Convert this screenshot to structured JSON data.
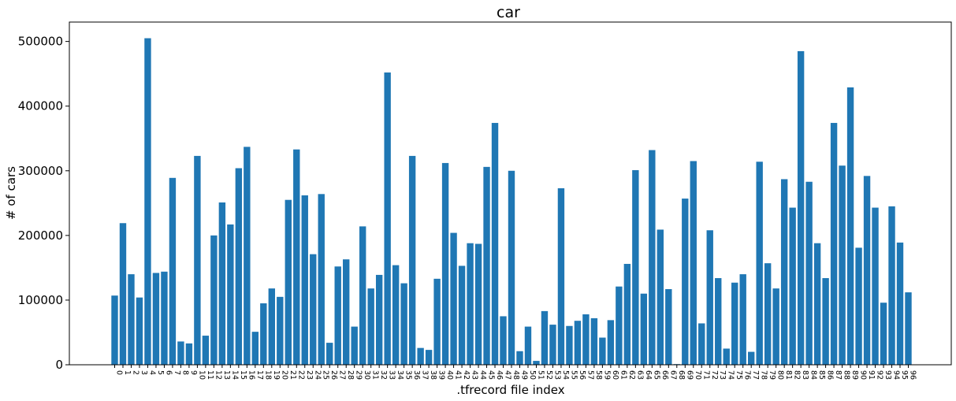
{
  "chart_data": {
    "type": "bar",
    "title": "car",
    "xlabel": ".tfrecord file index",
    "ylabel": "# of cars",
    "ylim": [
      0,
      530000
    ],
    "yticks": [
      0,
      100000,
      200000,
      300000,
      400000,
      500000
    ],
    "ytick_labels": [
      "0",
      "100000",
      "200000",
      "300000",
      "400000",
      "500000"
    ],
    "grid": false,
    "bar_color": "#1f77b4",
    "categories": [
      "0",
      "1",
      "2",
      "3",
      "4",
      "5",
      "6",
      "7",
      "8",
      "9",
      "10",
      "11",
      "12",
      "13",
      "14",
      "15",
      "16",
      "17",
      "18",
      "19",
      "20",
      "21",
      "22",
      "23",
      "24",
      "25",
      "26",
      "27",
      "28",
      "29",
      "30",
      "31",
      "32",
      "33",
      "34",
      "35",
      "36",
      "37",
      "38",
      "39",
      "40",
      "41",
      "42",
      "43",
      "44",
      "45",
      "46",
      "47",
      "48",
      "49",
      "50",
      "51",
      "52",
      "53",
      "54",
      "55",
      "56",
      "57",
      "58",
      "59",
      "60",
      "61",
      "62",
      "63",
      "64",
      "65",
      "66",
      "67",
      "68",
      "69",
      "70",
      "71",
      "72",
      "73",
      "74",
      "75",
      "76",
      "77",
      "78",
      "79",
      "80",
      "81",
      "82",
      "83",
      "84",
      "85",
      "86",
      "87",
      "88",
      "89",
      "90",
      "91",
      "92",
      "93",
      "94",
      "95",
      "96"
    ],
    "values": [
      107000,
      219000,
      140000,
      104000,
      505000,
      142000,
      144000,
      289000,
      36000,
      33000,
      323000,
      45000,
      200000,
      251000,
      217000,
      304000,
      337000,
      51000,
      95000,
      118000,
      105000,
      255000,
      333000,
      262000,
      171000,
      264000,
      34000,
      152000,
      163000,
      59000,
      214000,
      118000,
      139000,
      452000,
      154000,
      126000,
      323000,
      26000,
      23000,
      133000,
      312000,
      204000,
      153000,
      188000,
      187000,
      306000,
      374000,
      75000,
      300000,
      21000,
      59000,
      6000,
      83000,
      62000,
      273000,
      60000,
      68000,
      78000,
      72000,
      42000,
      69000,
      121000,
      156000,
      301000,
      110000,
      332000,
      209000,
      117000,
      1000,
      257000,
      315000,
      64000,
      208000,
      134000,
      25000,
      127000,
      140000,
      20000,
      314000,
      157000,
      118000,
      287000,
      243000,
      485000,
      283000,
      188000,
      134000,
      374000,
      308000,
      429000,
      181000,
      292000,
      243000,
      96000,
      245000,
      189000,
      112000
    ]
  }
}
